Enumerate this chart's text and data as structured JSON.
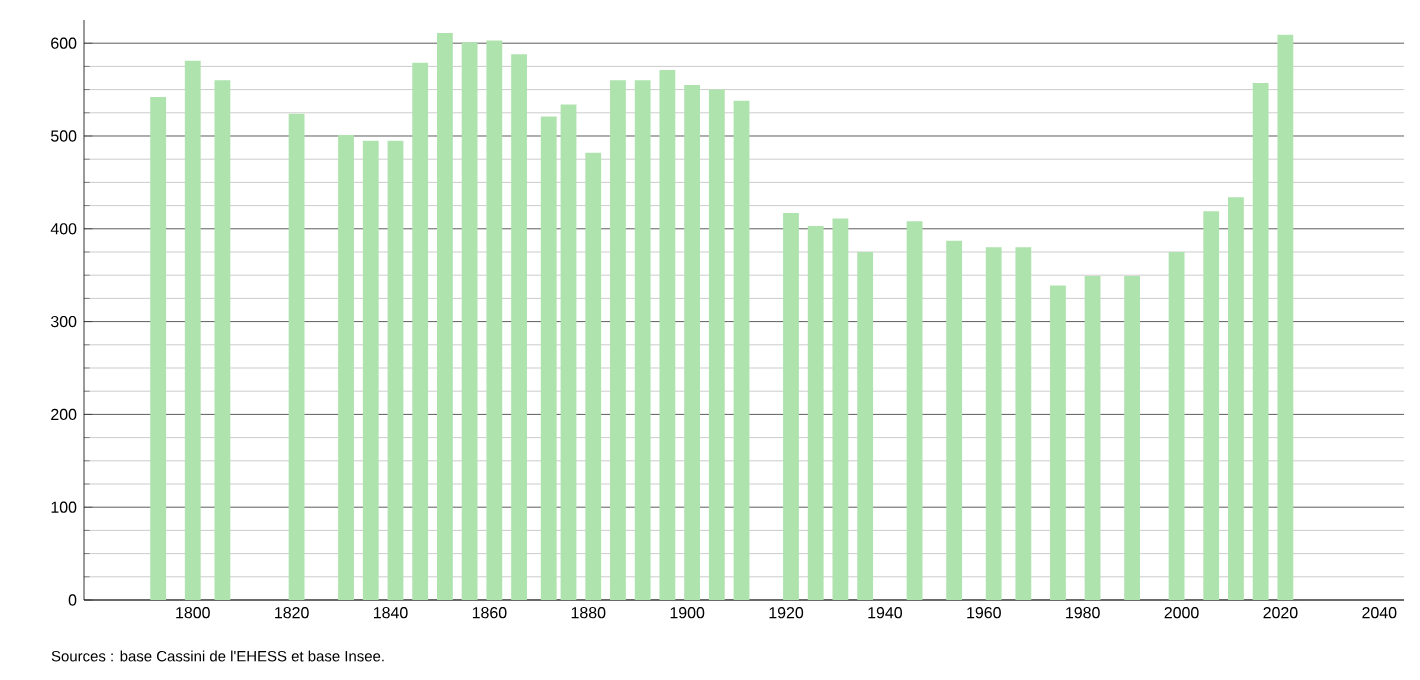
{
  "chart_data": {
    "type": "bar",
    "x": [
      1793,
      1800,
      1806,
      1821,
      1831,
      1836,
      1841,
      1846,
      1851,
      1856,
      1861,
      1866,
      1872,
      1876,
      1881,
      1886,
      1891,
      1896,
      1901,
      1906,
      1911,
      1921,
      1926,
      1931,
      1936,
      1946,
      1954,
      1962,
      1968,
      1975,
      1982,
      1990,
      1999,
      2006,
      2011,
      2016,
      2021
    ],
    "values": [
      542,
      581,
      560,
      524,
      501,
      495,
      495,
      579,
      611,
      601,
      603,
      588,
      521,
      534,
      482,
      560,
      560,
      571,
      555,
      550,
      538,
      417,
      403,
      411,
      375,
      408,
      387,
      380,
      380,
      339,
      349,
      349,
      375,
      419,
      434,
      557,
      609
    ],
    "color": "#aee3ae",
    "xlim": [
      1778,
      2045
    ],
    "ylim": [
      0,
      625
    ],
    "xticks": [
      1800,
      1820,
      1840,
      1860,
      1880,
      1900,
      1920,
      1940,
      1960,
      1980,
      2000,
      2020,
      2040
    ],
    "yticks": [
      0,
      100,
      200,
      300,
      400,
      500,
      600
    ],
    "grid": "y",
    "annotations": [
      "Sources : base Cassini de l'EHESS et base Insee."
    ]
  }
}
